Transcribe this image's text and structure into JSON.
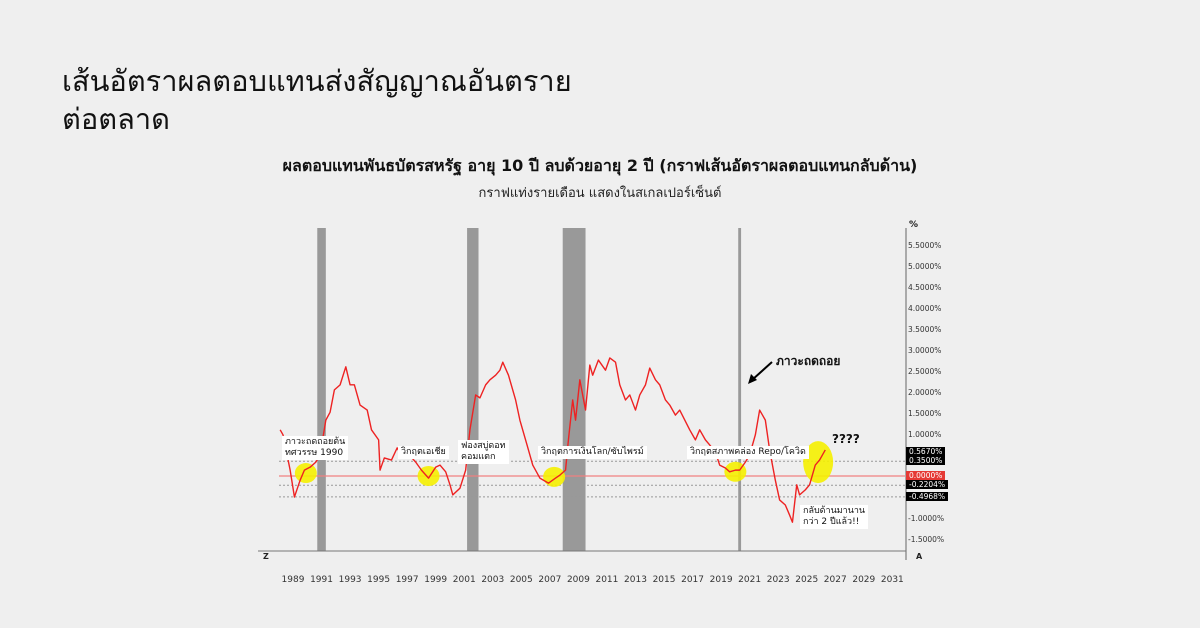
{
  "headline": {
    "line1": "เส้นอัตราผลตอบแทนส่งสัญญาณอันตราย",
    "line2": "ต่อตลาด"
  },
  "chart_data": {
    "type": "line",
    "title": "ผลตอบแทนพันธบัตรสหรัฐ อายุ 10 ปี ลบด้วยอายุ 2 ปี (กราฟเส้นอัตราผลตอบแทนกลับด้าน)",
    "subtitle": "กราฟแท่งรายเดือน แสดงในสเกลเปอร์เซ็นต์",
    "ylabel": "%",
    "xlim": [
      1988,
      2031.5
    ],
    "ylim": [
      -1.75,
      5.75
    ],
    "x_ticks": [
      "1989",
      "1991",
      "1993",
      "1995",
      "1997",
      "1999",
      "2001",
      "2003",
      "2005",
      "2007",
      "2009",
      "2011",
      "2013",
      "2015",
      "2017",
      "2019",
      "2021",
      "2023",
      "2025",
      "2027",
      "2029",
      "2031"
    ],
    "y_ticks": [
      "5.5000%",
      "5.0000%",
      "4.5000%",
      "4.0000%",
      "3.5000%",
      "3.0000%",
      "2.5000%",
      "2.0000%",
      "1.5000%",
      "1.0000%",
      "-1.0000%",
      "-1.5000%"
    ],
    "y_tick_values": [
      5.5,
      5.0,
      4.5,
      4.0,
      3.5,
      3.0,
      2.5,
      2.0,
      1.5,
      1.0,
      -1.0,
      -1.5
    ],
    "corner_labels": {
      "left": "Z",
      "right": "A"
    },
    "series": [
      {
        "color": "#ee2222",
        "x": [
          1988.1,
          1988.3,
          1988.8,
          1989.1,
          1989.5,
          1989.8,
          1990.2,
          1990.6,
          1990.9,
          1991.3,
          1991.6,
          1991.9,
          1992.3,
          1992.7,
          1993.0,
          1993.3,
          1993.7,
          1994.2,
          1994.5,
          1995.0,
          1995.1,
          1995.4,
          1995.9,
          1996.3,
          1996.5,
          1997.2,
          1997.6,
          1998.0,
          1998.5,
          1999.0,
          1999.3,
          1999.7,
          2000.0,
          2000.2,
          2000.7,
          2001.1,
          2001.4,
          2001.8,
          2002.1,
          2002.5,
          2002.8,
          2003.2,
          2003.5,
          2003.7,
          2004.1,
          2004.6,
          2004.9,
          2005.4,
          2005.8,
          2006.3,
          2006.9,
          2007.4,
          2007.7,
          2008.1,
          2008.3,
          2008.6,
          2008.8,
          2009.1,
          2009.5,
          2009.8,
          2010.0,
          2010.4,
          2010.9,
          2011.2,
          2011.6,
          2011.9,
          2012.3,
          2012.6,
          2013.0,
          2013.3,
          2013.7,
          2014.0,
          2014.4,
          2014.7,
          2015.1,
          2015.4,
          2015.8,
          2016.1,
          2016.8,
          2017.2,
          2017.5,
          2017.9,
          2018.2,
          2018.6,
          2018.9,
          2019.3,
          2019.6,
          2020.0,
          2020.3,
          2020.7,
          2021.0,
          2021.4,
          2021.7,
          2022.1,
          2022.4,
          2022.8,
          2023.1,
          2023.5,
          2023.8,
          2024.0,
          2024.3,
          2024.5,
          2024.9,
          2025.2,
          2025.6,
          2025.9,
          2026.3
        ],
        "values": [
          1.1,
          0.98,
          0.14,
          -0.5,
          -0.1,
          0.14,
          0.21,
          0.33,
          0.5,
          1.33,
          1.52,
          2.05,
          2.17,
          2.6,
          2.17,
          2.17,
          1.69,
          1.57,
          1.1,
          0.86,
          0.14,
          0.43,
          0.38,
          0.67,
          0.55,
          0.48,
          0.33,
          0.14,
          -0.05,
          0.21,
          0.26,
          0.1,
          -0.21,
          -0.45,
          -0.29,
          0.14,
          1.1,
          1.93,
          1.86,
          2.17,
          2.29,
          2.4,
          2.52,
          2.71,
          2.4,
          1.81,
          1.33,
          0.74,
          0.26,
          -0.05,
          -0.17,
          -0.05,
          0.02,
          0.14,
          0.86,
          1.81,
          1.33,
          2.29,
          1.57,
          2.64,
          2.4,
          2.76,
          2.52,
          2.81,
          2.71,
          2.17,
          1.81,
          1.93,
          1.57,
          1.93,
          2.17,
          2.57,
          2.29,
          2.17,
          1.81,
          1.69,
          1.45,
          1.57,
          1.1,
          0.86,
          1.1,
          0.86,
          0.74,
          0.57,
          0.26,
          0.19,
          0.1,
          0.14,
          0.14,
          0.33,
          0.5,
          0.98,
          1.57,
          1.33,
          0.62,
          -0.1,
          -0.57,
          -0.69,
          -0.93,
          -1.1,
          -0.21,
          -0.45,
          -0.33,
          -0.21,
          0.26,
          0.38,
          0.62
        ]
      }
    ],
    "recessions": [
      [
        1990.7,
        1991.3
      ],
      [
        2001.2,
        2002.0
      ],
      [
        2007.9,
        2009.5
      ],
      [
        2020.2,
        2020.4
      ]
    ],
    "reference_lines": [
      {
        "value": 0.35,
        "style": "dotted",
        "color": "#999999"
      },
      {
        "value": 0.0,
        "style": "solid",
        "color": "#f08080"
      },
      {
        "value": -0.2204,
        "style": "dotted",
        "color": "#999999"
      },
      {
        "value": -0.4968,
        "style": "dotted",
        "color": "#999999"
      }
    ],
    "value_tags": [
      {
        "label": "0.5670%",
        "value": 0.567,
        "color": "#000000"
      },
      {
        "label": "0.3500%",
        "value": 0.35,
        "color": "#000000"
      },
      {
        "label": "0.0000%",
        "value": 0.0,
        "color": "#e53935"
      },
      {
        "label": "-0.2204%",
        "value": -0.2204,
        "color": "#000000"
      },
      {
        "label": "-0.4968%",
        "value": -0.4968,
        "color": "#000000"
      }
    ],
    "highlights": [
      {
        "x": 1989.9,
        "y": 0.07,
        "color": "#f5f000"
      },
      {
        "x": 1998.5,
        "y": 0.0,
        "color": "#f5f000"
      },
      {
        "x": 2007.3,
        "y": -0.02,
        "color": "#f5f000"
      },
      {
        "x": 2020.0,
        "y": 0.1,
        "color": "#f5f000"
      },
      {
        "x": 2025.8,
        "y": 0.33,
        "color": "#f5f000",
        "large": true
      }
    ],
    "annotations": [
      {
        "lines": [
          "ภาวะถดถอยต้น",
          "ทศวรรษ 1990"
        ]
      },
      {
        "lines": [
          "วิกฤตเอเชีย"
        ]
      },
      {
        "lines": [
          "ฟองสบู่ดอท",
          "คอมแตก"
        ]
      },
      {
        "lines": [
          "วิกฤตการเงินโลก/ซับไพรม์"
        ]
      },
      {
        "lines": [
          "วิกฤตสภาพคล่อง Repo/โควิด"
        ]
      },
      {
        "lines": [
          "กลับด้านมานาน",
          "กว่า 2 ปีแล้ว!!"
        ]
      }
    ],
    "callouts": {
      "recession": "ภาวะถดถอย",
      "question": "????"
    }
  }
}
